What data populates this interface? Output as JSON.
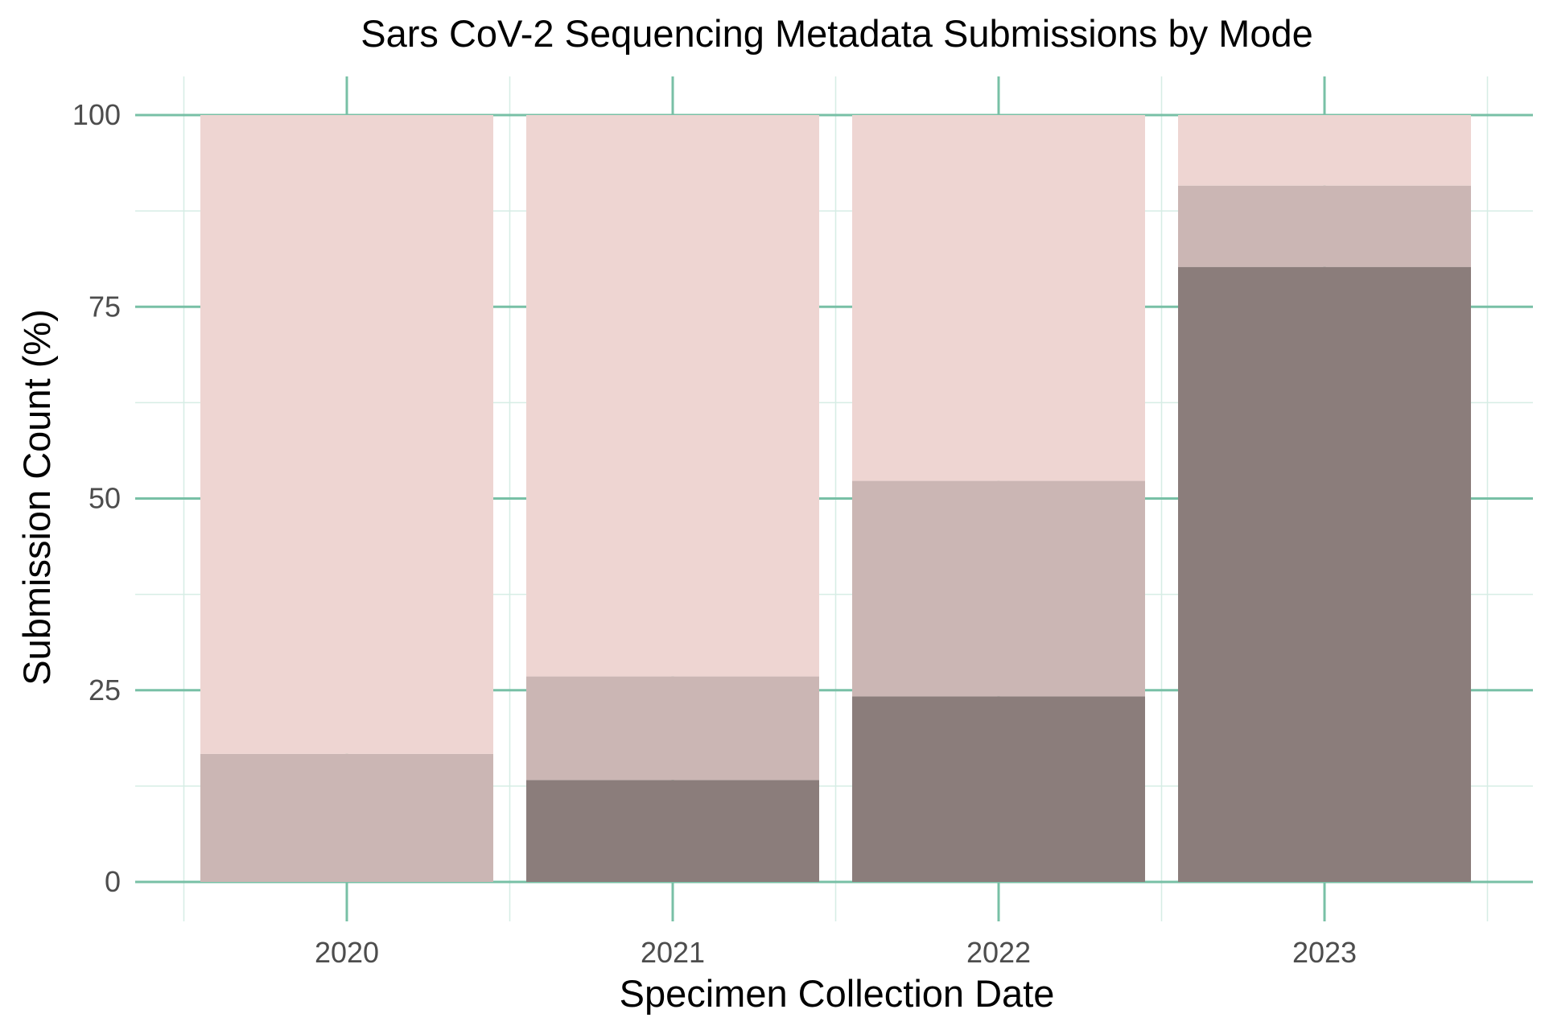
{
  "chart_data": {
    "type": "bar",
    "stacked": true,
    "title": "Sars CoV-2 Sequencing Metadata Submissions by Mode",
    "xlabel": "Specimen Collection Date",
    "ylabel": "Submission Count (%)",
    "categories": [
      "2020",
      "2021",
      "2022",
      "2023"
    ],
    "ylim": [
      0,
      100
    ],
    "yticks": [
      0,
      25,
      50,
      75,
      100
    ],
    "grid": true,
    "legend": "none",
    "series": [
      {
        "values": [
          0,
          13.3,
          24.2,
          80.2
        ],
        "color": "#8b7d7b"
      },
      {
        "values": [
          16.7,
          13.5,
          28.1,
          10.6
        ],
        "color": "#cbb6b4"
      },
      {
        "values": [
          83.3,
          73.2,
          47.7,
          9.2
        ],
        "color": "#eed5d2"
      }
    ],
    "colors": {
      "grid_major": "#78c0a6",
      "grid_minor": "#d6ede5"
    }
  }
}
